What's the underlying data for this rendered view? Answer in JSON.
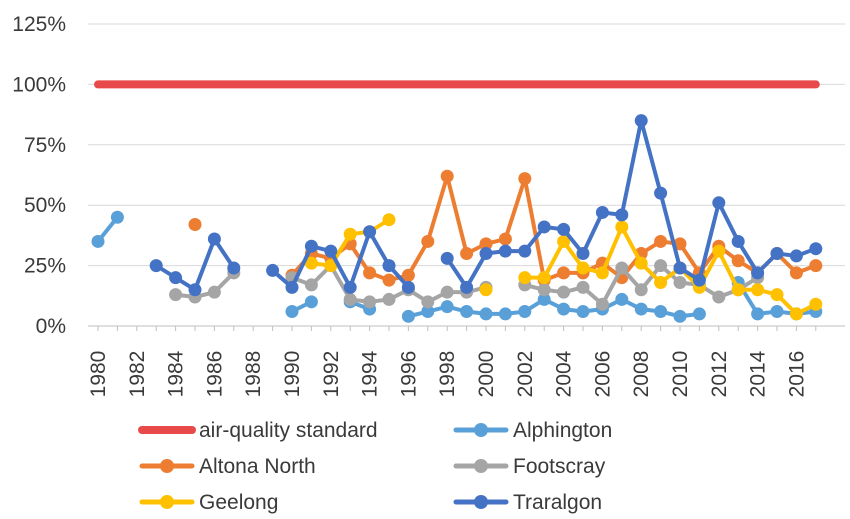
{
  "chart_data": {
    "type": "line",
    "title": "",
    "xlabel": "",
    "ylabel": "",
    "ylim": [
      0,
      125
    ],
    "xlim": [
      1980,
      2017
    ],
    "yticks": [
      "0%",
      "25%",
      "50%",
      "75%",
      "100%",
      "125%"
    ],
    "ytick_values": [
      0,
      25,
      50,
      75,
      100,
      125
    ],
    "xticks": [
      "1980",
      "1982",
      "1984",
      "1986",
      "1988",
      "1990",
      "1992",
      "1994",
      "1996",
      "1998",
      "2000",
      "2002",
      "2004",
      "2006",
      "2008",
      "2010",
      "2012",
      "2014",
      "2016"
    ],
    "grid": "horizontal",
    "legend_position": "bottom",
    "x": [
      1980,
      1981,
      1982,
      1983,
      1984,
      1985,
      1986,
      1987,
      1988,
      1989,
      1990,
      1991,
      1992,
      1993,
      1994,
      1995,
      1996,
      1997,
      1998,
      1999,
      2000,
      2001,
      2002,
      2003,
      2004,
      2005,
      2006,
      2007,
      2008,
      2009,
      2010,
      2011,
      2012,
      2013,
      2014,
      2015,
      2016,
      2017
    ],
    "series": [
      {
        "name": "air-quality standard",
        "color": "#e84a4a",
        "markers": false,
        "values": [
          100,
          100,
          100,
          100,
          100,
          100,
          100,
          100,
          100,
          100,
          100,
          100,
          100,
          100,
          100,
          100,
          100,
          100,
          100,
          100,
          100,
          100,
          100,
          100,
          100,
          100,
          100,
          100,
          100,
          100,
          100,
          100,
          100,
          100,
          100,
          100,
          100,
          100
        ]
      },
      {
        "name": "Alphington",
        "color": "#5aa0d8",
        "markers": true,
        "values": [
          35,
          45,
          null,
          null,
          null,
          null,
          null,
          null,
          null,
          null,
          6,
          10,
          null,
          10,
          7,
          null,
          4,
          6,
          8,
          6,
          5,
          5,
          6,
          11,
          7,
          6,
          7,
          11,
          7,
          6,
          4,
          5,
          null,
          18,
          5,
          6,
          5,
          6
        ]
      },
      {
        "name": "Altona North",
        "color": "#ed7d31",
        "markers": true,
        "values": [
          null,
          null,
          null,
          null,
          null,
          42,
          null,
          null,
          null,
          null,
          21,
          30,
          28,
          34,
          22,
          19,
          21,
          35,
          62,
          30,
          34,
          36,
          61,
          19,
          22,
          22,
          26,
          20,
          30,
          35,
          34,
          22,
          33,
          27,
          22,
          30,
          22,
          25
        ]
      },
      {
        "name": "Footscray",
        "color": "#a5a5a5",
        "markers": true,
        "values": [
          null,
          null,
          null,
          null,
          13,
          12,
          14,
          22,
          null,
          null,
          20,
          17,
          25,
          11,
          10,
          11,
          15,
          10,
          14,
          14,
          16,
          null,
          17,
          15,
          14,
          16,
          9,
          24,
          15,
          25,
          18,
          17,
          12,
          15,
          20,
          null,
          null,
          null
        ]
      },
      {
        "name": "Geelong",
        "color": "#ffc000",
        "markers": true,
        "values": [
          null,
          null,
          null,
          null,
          null,
          null,
          null,
          null,
          null,
          null,
          null,
          26,
          25,
          38,
          39,
          44,
          null,
          null,
          null,
          null,
          15,
          null,
          20,
          20,
          35,
          24,
          22,
          41,
          26,
          18,
          24,
          16,
          31,
          15,
          15,
          13,
          5,
          9
        ]
      },
      {
        "name": "Traralgon",
        "color": "#4472c4",
        "markers": true,
        "values": [
          null,
          null,
          null,
          25,
          20,
          15,
          36,
          24,
          null,
          23,
          16,
          33,
          31,
          16,
          39,
          25,
          16,
          null,
          28,
          16,
          30,
          31,
          31,
          41,
          40,
          30,
          47,
          46,
          85,
          55,
          24,
          19,
          51,
          35,
          22,
          30,
          29,
          32
        ]
      }
    ]
  }
}
